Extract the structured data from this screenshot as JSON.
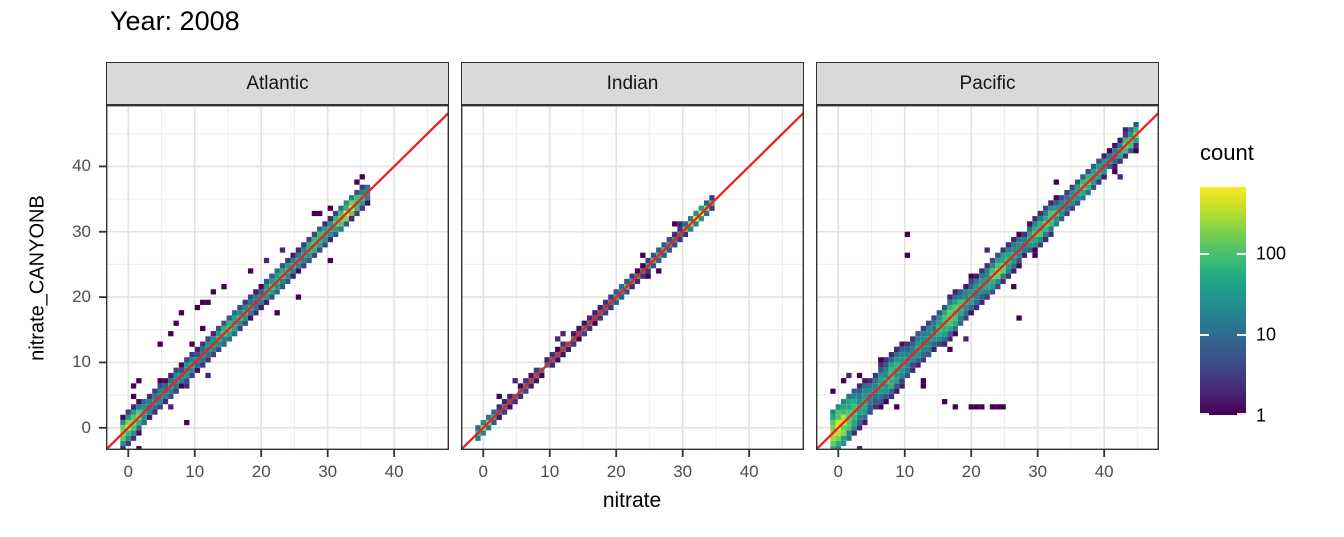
{
  "title": "Year: 2008",
  "axes": {
    "x_label": "nitrate",
    "y_label": "nitrate_CANYONB",
    "x_ticks": [
      0,
      10,
      20,
      30,
      40
    ],
    "y_ticks": [
      0,
      10,
      20,
      30,
      40
    ],
    "minor_ticks": [
      5,
      15,
      25,
      35,
      45
    ]
  },
  "legend": {
    "title": "count",
    "ticks": [
      100,
      10,
      1
    ]
  },
  "colors": {
    "identity_line": "#ed2024",
    "strip_bg": "#d9d9d9",
    "panel_border": "#333333",
    "grid_major": "#e2e2e2",
    "grid_minor": "#efefef",
    "tick_text": "#4d4d4d",
    "tick_mark": "#333333",
    "viridis_low": "#440154",
    "viridis_high": "#fde725"
  },
  "chart_data": {
    "type": "heatmap",
    "subtype": "faceted 2d-bin count heatmap (geom_bin2d) with y=x reference line",
    "title": "Year: 2008",
    "xlabel": "nitrate",
    "ylabel": "nitrate_CANYONB",
    "x_domain": [
      -3.35,
      48.25
    ],
    "y_domain": [
      -3.4,
      49.4
    ],
    "binwidth": 0.8,
    "count_scale": {
      "type": "log",
      "min": 1,
      "max": 650,
      "legend_labels": [
        100,
        10,
        1
      ]
    },
    "identity_line": {
      "slope": 1,
      "intercept": 0
    },
    "viridis_stops": [
      [
        0.0,
        "#440154"
      ],
      [
        0.1,
        "#482475"
      ],
      [
        0.2,
        "#414487"
      ],
      [
        0.3,
        "#355f8d"
      ],
      [
        0.4,
        "#2a788e"
      ],
      [
        0.5,
        "#21918c"
      ],
      [
        0.6,
        "#22a884"
      ],
      [
        0.7,
        "#44bf70"
      ],
      [
        0.8,
        "#7ad151"
      ],
      [
        0.9,
        "#bddf26"
      ],
      [
        1.0,
        "#fde725"
      ]
    ],
    "facets": [
      {
        "label": "Atlantic",
        "diag_range": [
          -0.6,
          36.2
        ],
        "band_spread": [
          1.05,
          0.85
        ],
        "base_count": 26,
        "hotspots": [
          {
            "at": 0.4,
            "count": 220
          },
          {
            "at": 15.6,
            "count": 80
          },
          {
            "at": 23.0,
            "count": 70
          },
          {
            "at": 28.6,
            "count": 110
          },
          {
            "at": 33.2,
            "count": 300
          }
        ],
        "stray_rate": 0.26,
        "stray_above_bias": 0.75,
        "outliers": [
          [
            1.0,
            6.5
          ],
          [
            1.6,
            7.5
          ],
          [
            0.6,
            4.8
          ],
          [
            9.0,
            0.7
          ],
          [
            5.0,
            13.0
          ],
          [
            6.0,
            14.5
          ],
          [
            7.6,
            16.0
          ],
          [
            8.2,
            17.5
          ],
          [
            10.0,
            18.2
          ],
          [
            12.0,
            19.5
          ],
          [
            12.6,
            21.0
          ],
          [
            14.0,
            21.6
          ],
          [
            11.0,
            19.0
          ],
          [
            25.6,
            20.2
          ],
          [
            22.0,
            17.6
          ],
          [
            27.8,
            33.0
          ],
          [
            18.6,
            24.0
          ],
          [
            30.0,
            25.6
          ]
        ],
        "seed": 7
      },
      {
        "label": "Indian",
        "diag_range": [
          -0.6,
          35.2
        ],
        "band_spread": [
          0.5,
          0.45
        ],
        "base_count": 22,
        "hotspots": [
          {
            "at": 0.3,
            "count": 120
          },
          {
            "at": 21.0,
            "count": 80
          },
          {
            "at": 27.0,
            "count": 100
          },
          {
            "at": 32.6,
            "count": 380
          }
        ],
        "stray_rate": 0.1,
        "stray_above_bias": 0.55,
        "outliers": [
          [
            2.2,
            4.6
          ],
          [
            25.2,
            23.0
          ],
          [
            24.0,
            26.0
          ],
          [
            26.5,
            24.4
          ],
          [
            29.0,
            31.2
          ]
        ],
        "seed": 13
      },
      {
        "label": "Pacific",
        "diag_range": [
          -0.9,
          45.2
        ],
        "band_spread": [
          1.8,
          0.8
        ],
        "base_count": 28,
        "hotspots": [
          {
            "at": 0.2,
            "count": 350
          },
          {
            "at": 8.0,
            "count": 60
          },
          {
            "at": 17.0,
            "count": 140
          },
          {
            "at": 24.0,
            "count": 120
          },
          {
            "at": 31.0,
            "count": 150
          },
          {
            "at": 37.5,
            "count": 90
          },
          {
            "at": 44.0,
            "count": 130
          }
        ],
        "stray_rate": 0.3,
        "stray_above_bias": 0.45,
        "outliers": [
          [
            17.7,
            3.1
          ],
          [
            19.8,
            3.1
          ],
          [
            20.6,
            3.1
          ],
          [
            21.4,
            3.1
          ],
          [
            22.8,
            3.1
          ],
          [
            24.2,
            3.1
          ],
          [
            24.9,
            3.1
          ],
          [
            15.8,
            4.3
          ],
          [
            9.2,
            3.5
          ],
          [
            26.8,
            17.0
          ],
          [
            20.0,
            23.2
          ],
          [
            10.2,
            29.8
          ],
          [
            10.2,
            26.7
          ],
          [
            32.5,
            37.4
          ],
          [
            3.2,
            8.2
          ],
          [
            0.5,
            6.8
          ],
          [
            -0.9,
            5.4
          ],
          [
            12.5,
            6.2
          ]
        ],
        "seed": 29
      }
    ]
  },
  "layout_note": "three facet panels sharing x/y scales; gray strips on top; viridis log-count legend on right"
}
